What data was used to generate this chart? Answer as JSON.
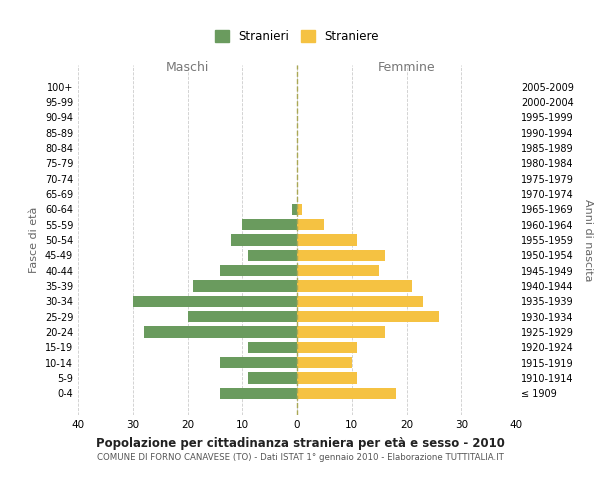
{
  "age_groups": [
    "100+",
    "95-99",
    "90-94",
    "85-89",
    "80-84",
    "75-79",
    "70-74",
    "65-69",
    "60-64",
    "55-59",
    "50-54",
    "45-49",
    "40-44",
    "35-39",
    "30-34",
    "25-29",
    "20-24",
    "15-19",
    "10-14",
    "5-9",
    "0-4"
  ],
  "birth_years": [
    "≤ 1909",
    "1910-1914",
    "1915-1919",
    "1920-1924",
    "1925-1929",
    "1930-1934",
    "1935-1939",
    "1940-1944",
    "1945-1949",
    "1950-1954",
    "1955-1959",
    "1960-1964",
    "1965-1969",
    "1970-1974",
    "1975-1979",
    "1980-1984",
    "1985-1989",
    "1990-1994",
    "1995-1999",
    "2000-2004",
    "2005-2009"
  ],
  "males": [
    0,
    0,
    0,
    0,
    0,
    0,
    0,
    0,
    1,
    10,
    12,
    9,
    14,
    19,
    30,
    20,
    28,
    9,
    14,
    9,
    14
  ],
  "females": [
    0,
    0,
    0,
    0,
    0,
    0,
    0,
    0,
    1,
    5,
    11,
    16,
    15,
    21,
    23,
    26,
    16,
    11,
    10,
    11,
    18
  ],
  "male_color": "#6a9b5e",
  "female_color": "#f5c242",
  "title": "Popolazione per cittadinanza straniera per età e sesso - 2010",
  "subtitle": "COMUNE DI FORNO CANAVESE (TO) - Dati ISTAT 1° gennaio 2010 - Elaborazione TUTTITALIA.IT",
  "xlabel_left": "Maschi",
  "xlabel_right": "Femmine",
  "ylabel_left": "Fasce di età",
  "ylabel_right": "Anni di nascita",
  "legend_male": "Stranieri",
  "legend_female": "Straniere",
  "xlim": 40,
  "bg_color": "#ffffff",
  "grid_color": "#cccccc",
  "bar_height": 0.75
}
